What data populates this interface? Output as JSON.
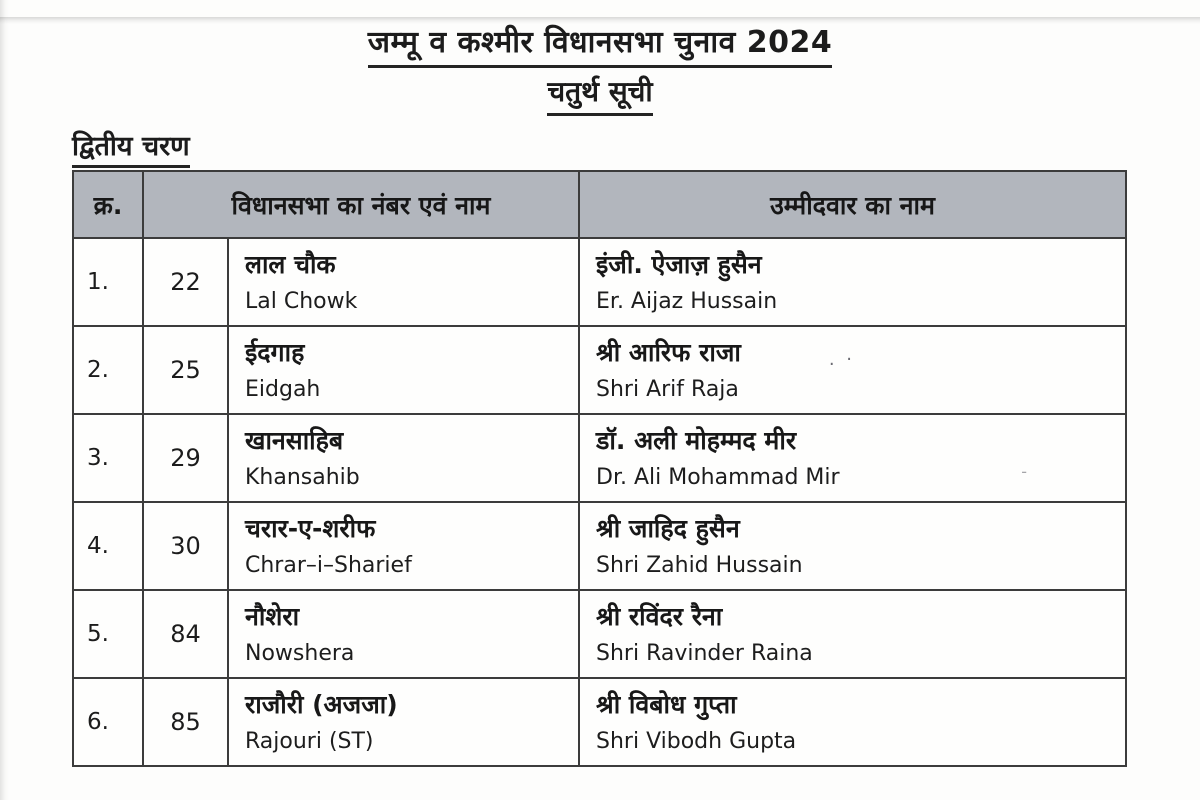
{
  "page": {
    "title_line1": "जम्मू व कश्मीर विधानसभा चुनाव 2024",
    "title_line2": "चतुर्थ सूची",
    "section_heading": "द्वितीय चरण"
  },
  "table": {
    "headers": {
      "serial": "क्र.",
      "constituency": "विधानसभा का नंबर एवं नाम",
      "candidate": "उम्मीदवार का नाम"
    },
    "rows": [
      {
        "serial": "1.",
        "number": "22",
        "constituency_hi": "लाल चौक",
        "constituency_en": "Lal Chowk",
        "candidate_hi": "इंजी. ऐजाज़ हुसैन",
        "candidate_en": "Er. Aijaz Hussain"
      },
      {
        "serial": "2.",
        "number": "25",
        "constituency_hi": "ईदगाह",
        "constituency_en": "Eidgah",
        "candidate_hi": "श्री आरिफ राजा",
        "candidate_en": "Shri Arif Raja"
      },
      {
        "serial": "3.",
        "number": "29",
        "constituency_hi": "खानसाहिब",
        "constituency_en": "Khansahib",
        "candidate_hi": "डॉ. अली मोहम्मद मीर",
        "candidate_en": "Dr. Ali Mohammad Mir"
      },
      {
        "serial": "4.",
        "number": "30",
        "constituency_hi": "चरार-ए-शरीफ",
        "constituency_en": "Chrar–i–Sharief",
        "candidate_hi": "श्री जाहिद हुसैन",
        "candidate_en": "Shri Zahid Hussain"
      },
      {
        "serial": "5.",
        "number": "84",
        "constituency_hi": "नौशेरा",
        "constituency_en": "Nowshera",
        "candidate_hi": "श्री रविंदर रैना",
        "candidate_en": "Shri Ravinder Raina"
      },
      {
        "serial": "6.",
        "number": "85",
        "constituency_hi": "राजौरी (अजजा)",
        "constituency_en": "Rajouri (ST)",
        "candidate_hi": "श्री विबोध गुप्ता",
        "candidate_en": "Shri Vibodh Gupta"
      }
    ]
  },
  "artifacts": {
    "row2_smudge": ". ·",
    "row3_smudge": "-"
  },
  "colors": {
    "header_bg": "#b2b6bd",
    "border": "#3c3c3c",
    "text": "#1c1c1c",
    "page_bg": "#fdfdfc"
  }
}
